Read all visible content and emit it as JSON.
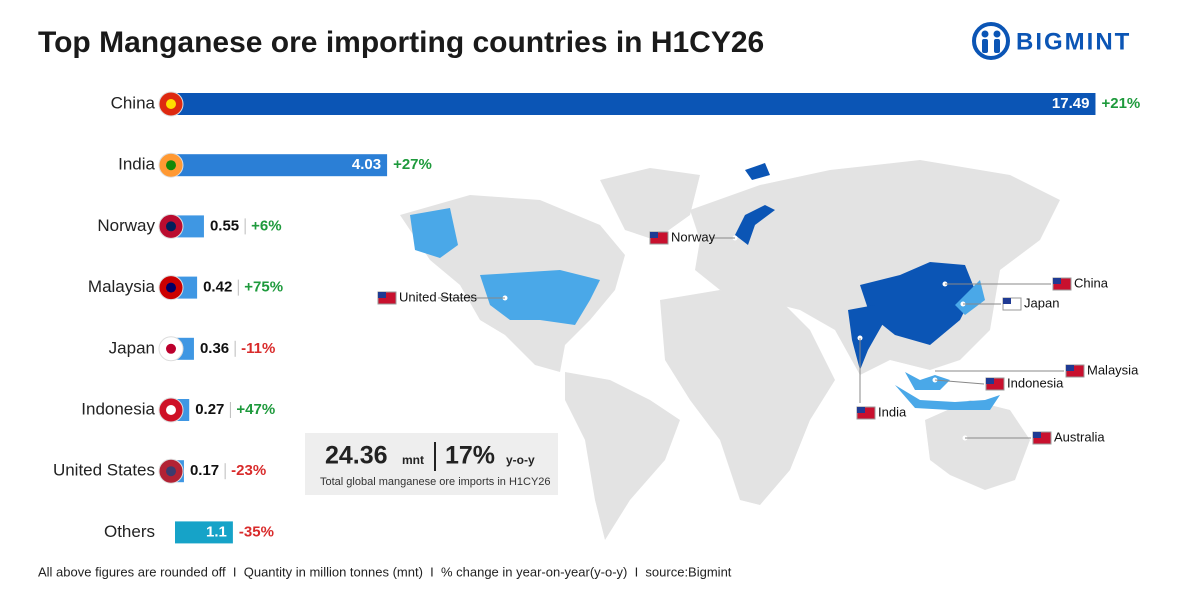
{
  "chart_data": {
    "type": "bar",
    "orientation": "horizontal",
    "title": "Top Manganese ore importing countries in H1CY26",
    "categories": [
      "China",
      "India",
      "Norway",
      "Malaysia",
      "Japan",
      "Indonesia",
      "United States",
      "Others"
    ],
    "values": [
      17.49,
      4.03,
      0.55,
      0.42,
      0.36,
      0.27,
      0.17,
      1.1
    ],
    "colors": [
      "#0b55b5",
      "#2b7fd6",
      "#3f97e3",
      "#3f97e3",
      "#3f97e3",
      "#3f97e3",
      "#3f97e3",
      "#16a3c8"
    ],
    "changes": [
      "+21%",
      "+27%",
      "+6%",
      "+75%",
      "-11%",
      "+47%",
      "-23%",
      "-35%"
    ],
    "positive_color": "#1e9a3c",
    "negative_color": "#d92b2b",
    "xlim": [
      0,
      17.5
    ]
  },
  "summary": {
    "total": "24.36",
    "total_unit": "mnt",
    "change": "17%",
    "change_unit": "y-o-y",
    "caption": "Total global manganese ore imports in H1CY26"
  },
  "map": {
    "labels": [
      "Norway",
      "United States",
      "China",
      "Japan",
      "Malaysia",
      "Indonesia",
      "India",
      "Australia"
    ]
  },
  "logo": "BIGMINT",
  "footer": "All above figures are rounded off  I  Quantity in million tonnes (mnt)  I  % change in year-on-year(y-o-y)  I  source:Bigmint"
}
